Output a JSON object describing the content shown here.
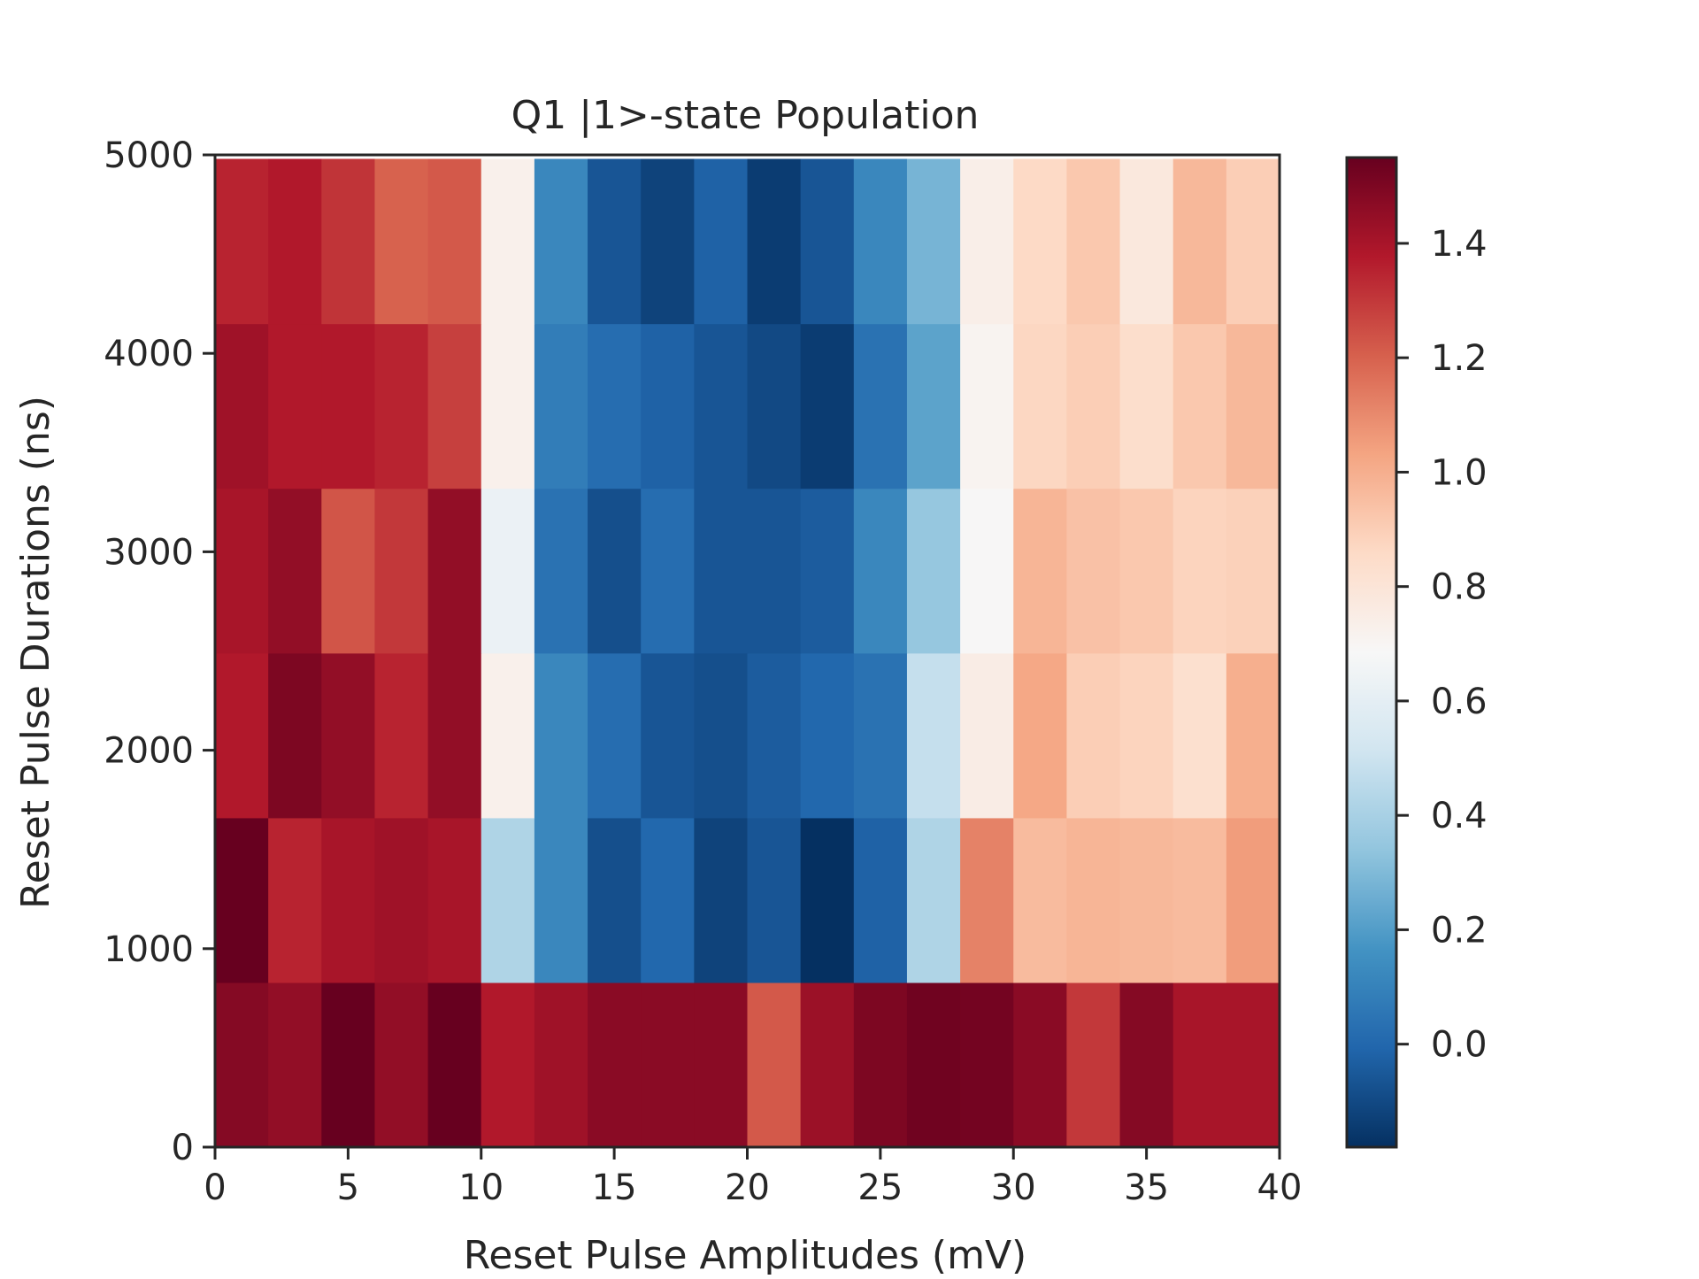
{
  "chart_data": {
    "type": "heatmap",
    "title": "Q1 |1>-state Population",
    "xlabel": "Reset Pulse Amplitudes (mV)",
    "ylabel": "Reset Pulse Durations (ns)",
    "xlim": [
      0,
      40
    ],
    "ylim": [
      0,
      5000
    ],
    "x_ticks": [
      0,
      5,
      10,
      15,
      20,
      25,
      30,
      35,
      40
    ],
    "y_ticks": [
      0,
      1000,
      2000,
      3000,
      4000,
      5000
    ],
    "x_edges": [
      0,
      2,
      4,
      6,
      8,
      10,
      12,
      14,
      16,
      18,
      20,
      22,
      24,
      26,
      28,
      30,
      32,
      34,
      36,
      38,
      40
    ],
    "y_edges": [
      0,
      830,
      1660,
      2490,
      3320,
      4150,
      4980
    ],
    "colormap": "RdBu_r",
    "color_range": [
      -0.18,
      1.55
    ],
    "colorbar_ticks": [
      0.0,
      0.2,
      0.4,
      0.6,
      0.8,
      1.0,
      1.2,
      1.4
    ],
    "colorbar_tick_labels": [
      "0.0",
      "0.2",
      "0.4",
      "0.6",
      "0.8",
      "1.0",
      "1.2",
      "1.4"
    ],
    "values": [
      [
        1.48,
        1.45,
        1.55,
        1.45,
        1.55,
        1.38,
        1.42,
        1.47,
        1.47,
        1.47,
        1.22,
        1.43,
        1.5,
        1.53,
        1.52,
        1.47,
        1.3,
        1.48,
        1.4,
        1.4
      ],
      [
        1.55,
        1.35,
        1.4,
        1.42,
        1.4,
        0.42,
        0.12,
        -0.08,
        0.0,
        -0.12,
        -0.06,
        -0.18,
        -0.02,
        0.42,
        1.12,
        0.96,
        0.98,
        0.97,
        0.96,
        1.05
      ],
      [
        1.38,
        1.5,
        1.45,
        1.35,
        1.45,
        0.73,
        0.12,
        0.02,
        -0.06,
        -0.08,
        -0.04,
        0.0,
        0.04,
        0.48,
        0.75,
        1.02,
        0.9,
        0.88,
        0.83,
        1.0
      ],
      [
        1.4,
        1.45,
        1.23,
        1.3,
        1.45,
        0.63,
        0.04,
        -0.08,
        0.02,
        -0.06,
        -0.06,
        -0.04,
        0.12,
        0.35,
        0.69,
        0.98,
        0.94,
        0.92,
        0.88,
        0.89
      ],
      [
        1.42,
        1.38,
        1.38,
        1.35,
        1.28,
        0.73,
        0.08,
        0.02,
        -0.02,
        -0.06,
        -0.1,
        -0.14,
        0.04,
        0.22,
        0.71,
        0.87,
        0.9,
        0.84,
        0.92,
        0.97
      ],
      [
        1.35,
        1.38,
        1.31,
        1.2,
        1.22,
        0.73,
        0.12,
        -0.06,
        -0.12,
        -0.02,
        -0.14,
        -0.06,
        0.12,
        0.28,
        0.74,
        0.86,
        0.92,
        0.78,
        0.97,
        0.9
      ]
    ]
  }
}
